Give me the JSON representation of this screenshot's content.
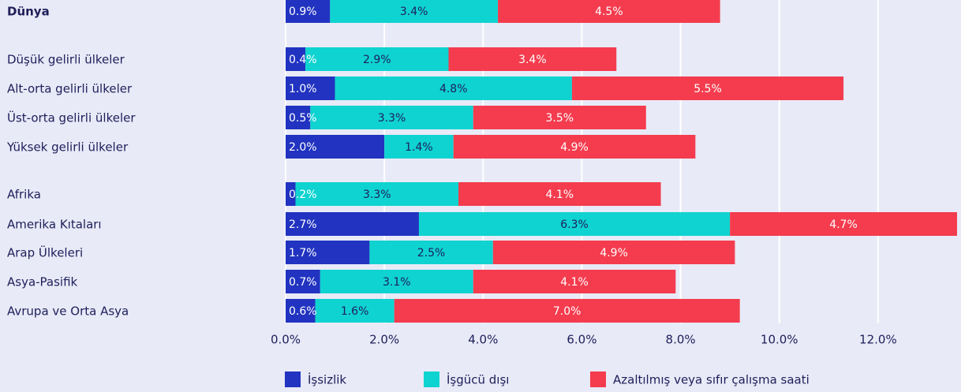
{
  "chart_data": {
    "type": "stacked-barh",
    "categories": [
      "Dünya",
      "Düşük gelirli ülkeler",
      "Alt-orta gelirli ülkeler",
      "Üst-orta gelirli ülkeler",
      "Yüksek gelirli ülkeler",
      "Afrika",
      "Amerika Kıtaları",
      "Arap Ülkeleri",
      "Asya-Pasifik",
      "Avrupa ve Orta Asya"
    ],
    "series": [
      {
        "name": "İşsizlik",
        "color": "#2133c0",
        "values": [
          0.9,
          0.4,
          1.0,
          0.5,
          2.0,
          0.2,
          2.7,
          1.7,
          0.7,
          0.6
        ],
        "value_labels": [
          "0.9%",
          "0.4%",
          "1.0%",
          "0.5%",
          "2.0%",
          "0.2%",
          "2.7%",
          "1.7%",
          "0.7%",
          "0.6%"
        ]
      },
      {
        "name": "İşgücü dışı",
        "color": "#0fd3d0",
        "values": [
          3.4,
          2.9,
          4.8,
          3.3,
          1.4,
          3.3,
          6.3,
          2.5,
          3.1,
          1.6
        ],
        "value_labels": [
          "3.4%",
          "2.9%",
          "4.8%",
          "3.3%",
          "1.4%",
          "3.3%",
          "6.3%",
          "2.5%",
          "3.1%",
          "1.6%"
        ]
      },
      {
        "name": "Azaltılmış veya sıfır çalışma saati",
        "color": "#f43c4e",
        "values": [
          4.5,
          3.4,
          5.5,
          3.5,
          4.9,
          4.1,
          4.7,
          4.9,
          4.1,
          7.0
        ],
        "value_labels": [
          "4.5%",
          "3.4%",
          "5.5%",
          "3.5%",
          "4.9%",
          "4.1%",
          "4.7%",
          "4.9%",
          "4.1%",
          "7.0%"
        ]
      }
    ],
    "xlim": [
      0,
      13.6
    ],
    "xticks": [
      {
        "value": 0,
        "label": "0.0%"
      },
      {
        "value": 2,
        "label": "2.0%"
      },
      {
        "value": 4,
        "label": "4.0%"
      },
      {
        "value": 6,
        "label": "6.0%"
      },
      {
        "value": 8,
        "label": "8.0%"
      },
      {
        "value": 10,
        "label": "10.0%"
      },
      {
        "value": 12,
        "label": "12.0%"
      }
    ],
    "grid": true
  }
}
